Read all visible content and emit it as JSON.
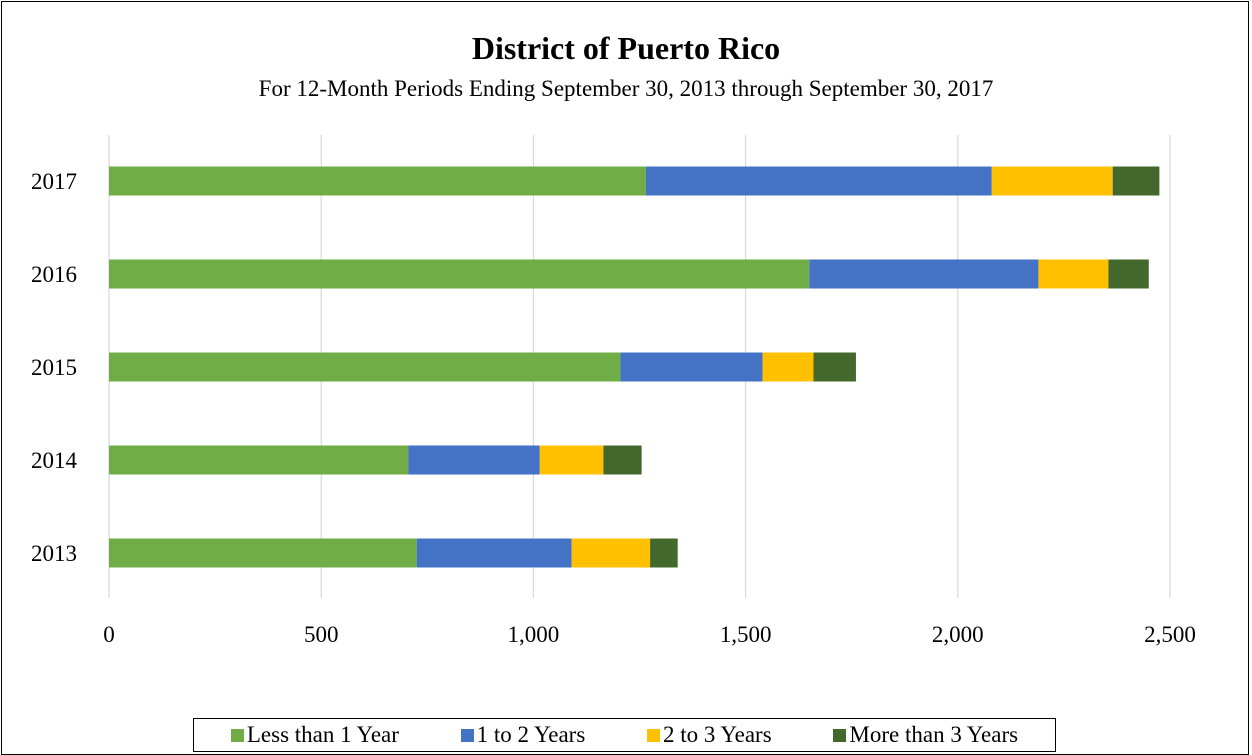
{
  "chart_data": {
    "type": "bar",
    "orientation": "horizontal",
    "stacked": true,
    "title": "District of Puerto Rico",
    "subtitle": "For 12-Month Periods Ending September 30, 2013 through September 30, 2017",
    "categories": [
      "2017",
      "2016",
      "2015",
      "2014",
      "2013"
    ],
    "series": [
      {
        "name": "Less than 1 Year",
        "color": "#70ad47",
        "values": [
          1265,
          1650,
          1205,
          705,
          725
        ]
      },
      {
        "name": "1 to 2 Years",
        "color": "#4472c4",
        "values": [
          815,
          540,
          335,
          310,
          365
        ]
      },
      {
        "name": "2 to 3 Years",
        "color": "#ffc000",
        "values": [
          285,
          165,
          120,
          150,
          185
        ]
      },
      {
        "name": "More than 3 Years",
        "color": "#43682b",
        "values": [
          110,
          95,
          100,
          90,
          65
        ]
      }
    ],
    "xlim": [
      0,
      2500
    ],
    "xticks": [
      0,
      500,
      1000,
      1500,
      2000,
      2500
    ],
    "xtick_labels": [
      "0",
      "500",
      "1,000",
      "1,500",
      "2,000",
      "2,500"
    ],
    "grid": "vertical",
    "legend_position": "bottom",
    "xlabel": "",
    "ylabel": ""
  }
}
